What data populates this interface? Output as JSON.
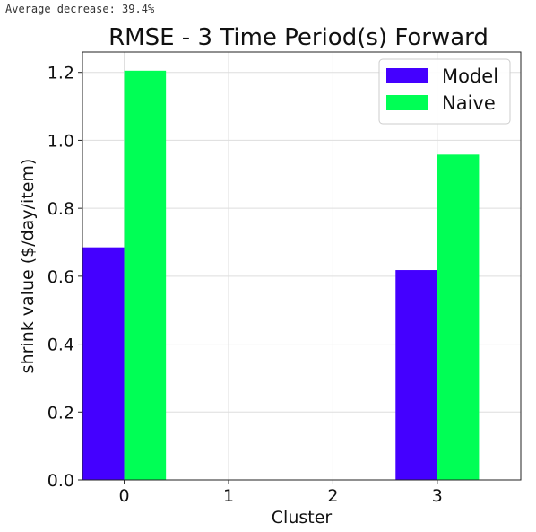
{
  "output": {
    "text": "Average decrease: 39.4%"
  },
  "chart_data": {
    "type": "bar",
    "title": "RMSE - 3 Time Period(s) Forward",
    "xlabel": "Cluster",
    "ylabel": "shrink value ($/day/item)",
    "categories": [
      "0",
      "1",
      "2",
      "3"
    ],
    "series": [
      {
        "name": "Model",
        "values": [
          0.685,
          0,
          0,
          0.618
        ],
        "color": "#4400ff"
      },
      {
        "name": "Naive",
        "values": [
          1.205,
          0,
          0,
          0.958
        ],
        "color": "#00ff55"
      }
    ],
    "ylim": [
      0,
      1.26
    ],
    "yticks": [
      "0.0",
      "0.2",
      "0.4",
      "0.6",
      "0.8",
      "1.0",
      "1.2"
    ],
    "xlim": [
      -0.4,
      3.8
    ],
    "grid": true,
    "legend_position": "top-right"
  }
}
